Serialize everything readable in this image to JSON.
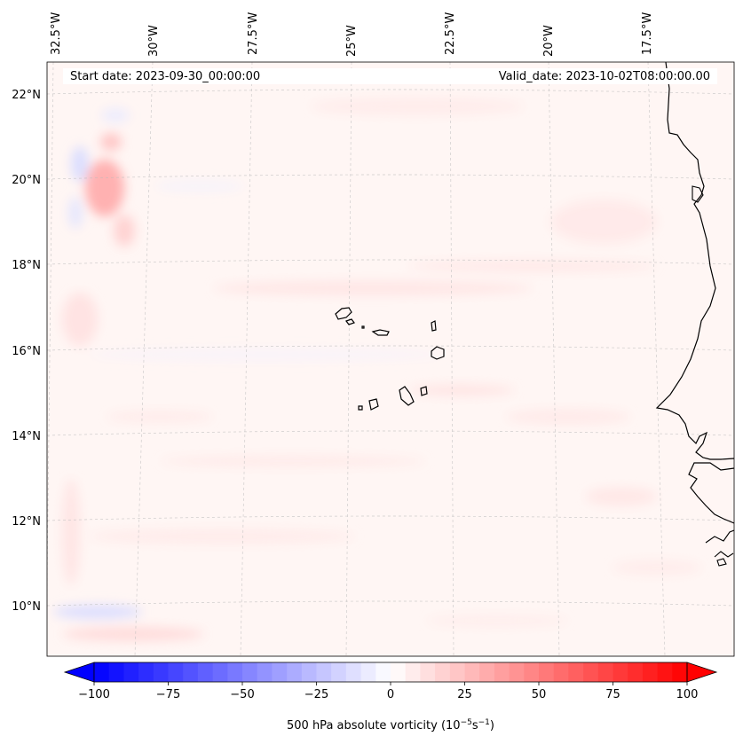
{
  "header": {
    "start_date": "Start date: 2023-09-30_00:00:00",
    "valid_date": "Valid_date: 2023-10-02T08:00:00.00"
  },
  "map": {
    "lon_labels": [
      "32.5°W",
      "30°W",
      "27.5°W",
      "25°W",
      "22.5°W",
      "20°W",
      "17.5°W"
    ],
    "lat_labels": [
      "22°N",
      "20°N",
      "18°N",
      "16°N",
      "14°N",
      "12°N",
      "10°N"
    ],
    "gridlines": true,
    "coastline_color": "#000000"
  },
  "colorbar": {
    "ticks": [
      "−100",
      "−75",
      "−50",
      "−25",
      "0",
      "25",
      "50",
      "75",
      "100"
    ],
    "label_prefix": "500 hPa absolute vorticity (10",
    "label_exp1": "−5",
    "label_mid": "s",
    "label_exp2": "−1",
    "label_suffix": ")",
    "min": -100,
    "max": 100,
    "cmap": "bwr",
    "extend": "both"
  }
}
